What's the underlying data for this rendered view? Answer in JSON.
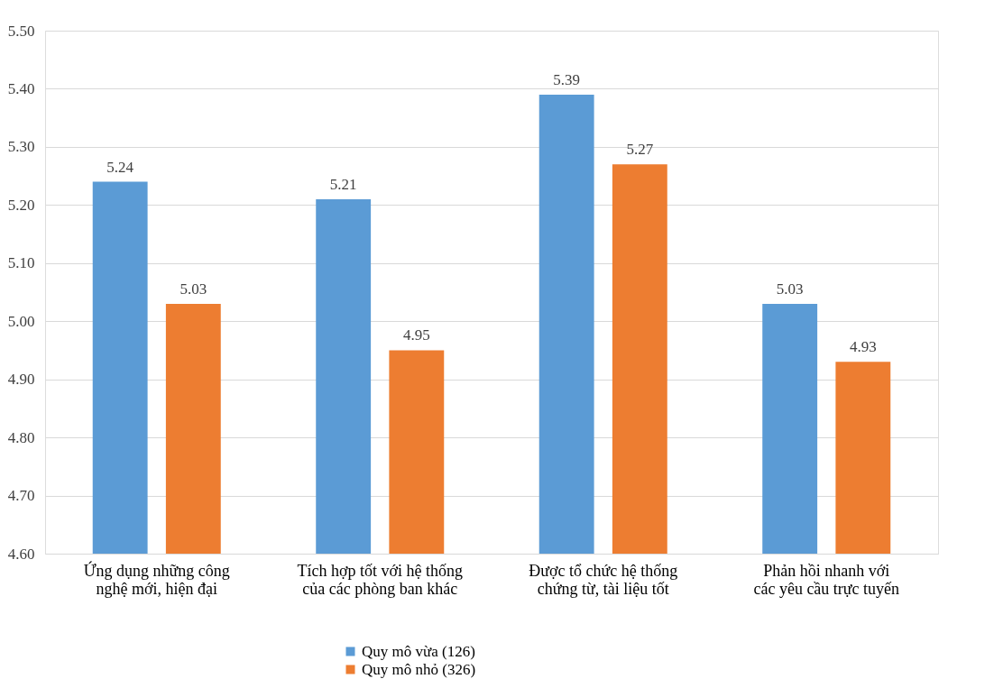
{
  "chart_data": {
    "type": "bar",
    "categories": [
      "Ứng dụng những công nghệ mới, hiện đại",
      "Tích hợp tốt với hệ thống của các phòng ban khác",
      "Được tổ chức hệ thống chứng từ, tài liệu tốt",
      "Phản hồi nhanh với các yêu cầu trực tuyến"
    ],
    "series": [
      {
        "name": "Quy mô vừa (126)",
        "color": "#5b9bd5",
        "values": [
          5.24,
          5.21,
          5.39,
          5.03
        ]
      },
      {
        "name": "Quy mô nhỏ (326)",
        "color": "#ed7d31",
        "values": [
          5.03,
          4.95,
          5.27,
          4.93
        ]
      }
    ],
    "ylim": [
      4.6,
      5.5
    ],
    "yticks": [
      {
        "value": 4.6,
        "label": "4.60"
      },
      {
        "value": 4.7,
        "label": "4.70"
      },
      {
        "value": 4.8,
        "label": "4.80"
      },
      {
        "value": 4.9,
        "label": "4.90"
      },
      {
        "value": 5.0,
        "label": "5.00"
      },
      {
        "value": 5.1,
        "label": "5.10"
      },
      {
        "value": 5.2,
        "label": "5.20"
      },
      {
        "value": 5.3,
        "label": "5.30"
      },
      {
        "value": 5.4,
        "label": "5.40"
      },
      {
        "value": 5.5,
        "label": "5.50"
      }
    ],
    "grid": "y",
    "legend": "bottom",
    "data_labels": true
  }
}
